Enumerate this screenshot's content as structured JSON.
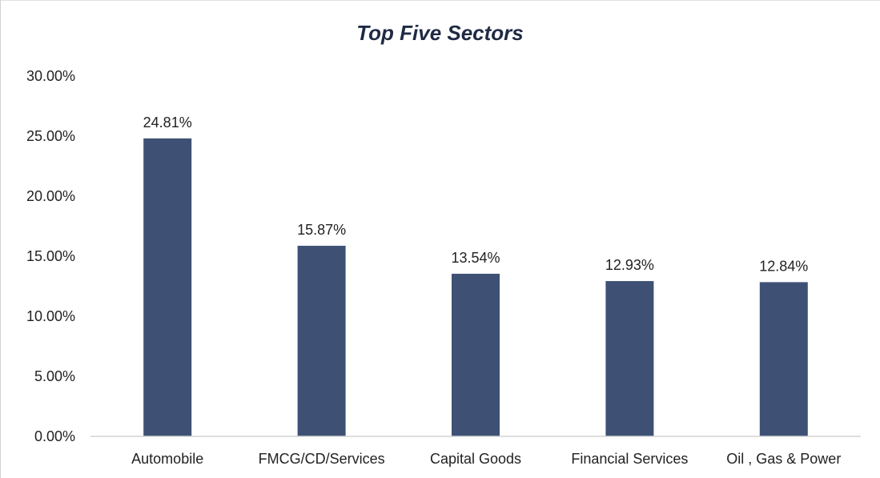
{
  "chart_data": {
    "type": "bar",
    "title": "Top Five Sectors",
    "categories": [
      "Automobile",
      "FMCG/CD/Services",
      "Capital Goods",
      "Financial Services",
      "Oil , Gas & Power"
    ],
    "values": [
      24.81,
      15.87,
      13.54,
      12.93,
      12.84
    ],
    "data_labels": [
      "24.81%",
      "15.87%",
      "13.54%",
      "12.93%",
      "12.84%"
    ],
    "yticks": [
      0,
      5,
      10,
      15,
      20,
      25,
      30
    ],
    "ytick_labels": [
      "0.00%",
      "5.00%",
      "10.00%",
      "15.00%",
      "20.00%",
      "25.00%",
      "30.00%"
    ],
    "ylim": [
      0,
      30
    ],
    "xlabel": "",
    "ylabel": "",
    "grid": false,
    "legend": "none",
    "bar_color": "#3e5175"
  }
}
